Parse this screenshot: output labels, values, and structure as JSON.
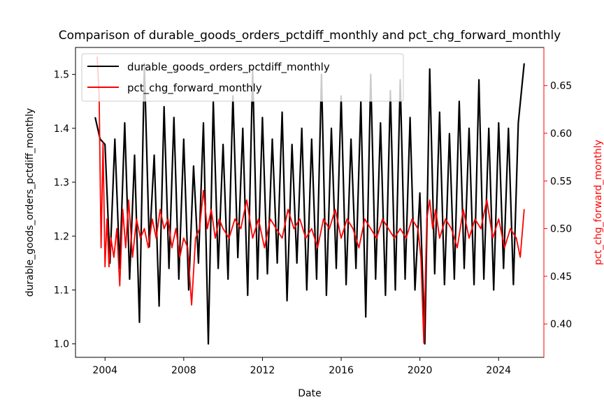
{
  "chart_data": {
    "type": "line",
    "title": "Comparison of durable_goods_orders_pctdiff_monthly and pct_chg_forward_monthly",
    "xlabel": "Date",
    "ylabel_left": "durable_goods_orders_pctdiff_monthly",
    "ylabel_right": "pct_chg_forward_monthly",
    "xlim": [
      2002.5,
      2026.3
    ],
    "ylim_left": [
      0.975,
      1.55
    ],
    "ylim_right": [
      0.365,
      0.69
    ],
    "x_ticks": [
      2004,
      2008,
      2012,
      2016,
      2020,
      2024
    ],
    "x_tick_labels": [
      "2004",
      "2008",
      "2012",
      "2016",
      "2020",
      "2024"
    ],
    "y_left_ticks": [
      1.0,
      1.1,
      1.2,
      1.3,
      1.4,
      1.5
    ],
    "y_left_tick_labels": [
      "1.0",
      "1.1",
      "1.2",
      "1.3",
      "1.4",
      "1.5"
    ],
    "y_right_ticks": [
      0.4,
      0.45,
      0.5,
      0.55,
      0.6,
      0.65
    ],
    "y_right_tick_labels": [
      "0.40",
      "0.45",
      "0.50",
      "0.55",
      "0.60",
      "0.65"
    ],
    "grid": false,
    "legend_position": "top-left",
    "series": [
      {
        "name": "durable_goods_orders_pctdiff_monthly",
        "axis": "left",
        "color": "#000000",
        "x": [
          2003.5,
          2003.75,
          2004.0,
          2004.25,
          2004.5,
          2004.75,
          2005.0,
          2005.25,
          2005.5,
          2005.75,
          2006.0,
          2006.25,
          2006.5,
          2006.75,
          2007.0,
          2007.25,
          2007.5,
          2007.75,
          2008.0,
          2008.25,
          2008.5,
          2008.75,
          2009.0,
          2009.25,
          2009.5,
          2009.75,
          2010.0,
          2010.25,
          2010.5,
          2010.75,
          2011.0,
          2011.25,
          2011.5,
          2011.75,
          2012.0,
          2012.25,
          2012.5,
          2012.75,
          2013.0,
          2013.25,
          2013.5,
          2013.75,
          2014.0,
          2014.25,
          2014.5,
          2014.75,
          2015.0,
          2015.25,
          2015.5,
          2015.75,
          2016.0,
          2016.25,
          2016.5,
          2016.75,
          2017.0,
          2017.25,
          2017.5,
          2017.75,
          2018.0,
          2018.25,
          2018.5,
          2018.75,
          2019.0,
          2019.25,
          2019.5,
          2019.75,
          2020.0,
          2020.25,
          2020.5,
          2020.75,
          2021.0,
          2021.25,
          2021.5,
          2021.75,
          2022.0,
          2022.25,
          2022.5,
          2022.75,
          2023.0,
          2023.25,
          2023.5,
          2023.75,
          2024.0,
          2024.25,
          2024.5,
          2024.75,
          2025.0,
          2025.3
        ],
        "values": [
          1.42,
          1.38,
          1.37,
          1.15,
          1.38,
          1.14,
          1.41,
          1.12,
          1.35,
          1.04,
          1.52,
          1.18,
          1.35,
          1.07,
          1.44,
          1.14,
          1.42,
          1.12,
          1.38,
          1.1,
          1.33,
          1.15,
          1.41,
          1.0,
          1.45,
          1.14,
          1.37,
          1.12,
          1.46,
          1.16,
          1.4,
          1.09,
          1.51,
          1.12,
          1.42,
          1.13,
          1.38,
          1.15,
          1.43,
          1.08,
          1.37,
          1.15,
          1.4,
          1.1,
          1.38,
          1.12,
          1.5,
          1.09,
          1.4,
          1.14,
          1.46,
          1.11,
          1.38,
          1.14,
          1.45,
          1.05,
          1.5,
          1.12,
          1.41,
          1.09,
          1.47,
          1.1,
          1.49,
          1.12,
          1.42,
          1.1,
          1.28,
          1.0,
          1.51,
          1.13,
          1.43,
          1.11,
          1.39,
          1.12,
          1.45,
          1.14,
          1.4,
          1.11,
          1.49,
          1.12,
          1.4,
          1.1,
          1.41,
          1.14,
          1.4,
          1.11,
          1.41,
          1.52
        ]
      },
      {
        "name": "pct_chg_forward_monthly",
        "axis": "right",
        "color": "#ff0000",
        "x": [
          2003.6,
          2003.7,
          2003.8,
          2003.9,
          2004.0,
          2004.1,
          2004.2,
          2004.3,
          2004.45,
          2004.6,
          2004.75,
          2004.9,
          2005.05,
          2005.2,
          2005.4,
          2005.6,
          2005.8,
          2006.0,
          2006.2,
          2006.4,
          2006.6,
          2006.8,
          2007.0,
          2007.2,
          2007.4,
          2007.6,
          2007.8,
          2008.0,
          2008.2,
          2008.4,
          2008.6,
          2008.8,
          2009.0,
          2009.2,
          2009.4,
          2009.6,
          2009.8,
          2010.0,
          2010.3,
          2010.6,
          2010.9,
          2011.2,
          2011.5,
          2011.8,
          2012.1,
          2012.4,
          2012.7,
          2013.0,
          2013.3,
          2013.6,
          2013.9,
          2014.2,
          2014.5,
          2014.8,
          2015.1,
          2015.4,
          2015.7,
          2016.0,
          2016.3,
          2016.6,
          2016.9,
          2017.2,
          2017.5,
          2017.8,
          2018.1,
          2018.4,
          2018.7,
          2019.0,
          2019.3,
          2019.6,
          2019.9,
          2020.05,
          2020.2,
          2020.35,
          2020.5,
          2020.65,
          2020.8,
          2021.0,
          2021.3,
          2021.6,
          2021.9,
          2022.2,
          2022.5,
          2022.8,
          2023.1,
          2023.4,
          2023.7,
          2024.0,
          2024.3,
          2024.6,
          2024.9,
          2025.1,
          2025.3
        ],
        "values": [
          0.68,
          0.64,
          0.48,
          0.59,
          0.46,
          0.51,
          0.46,
          0.49,
          0.47,
          0.5,
          0.44,
          0.52,
          0.48,
          0.53,
          0.47,
          0.51,
          0.49,
          0.5,
          0.48,
          0.51,
          0.49,
          0.52,
          0.5,
          0.51,
          0.48,
          0.5,
          0.47,
          0.49,
          0.48,
          0.42,
          0.49,
          0.5,
          0.54,
          0.5,
          0.52,
          0.49,
          0.51,
          0.5,
          0.49,
          0.51,
          0.5,
          0.53,
          0.49,
          0.51,
          0.48,
          0.51,
          0.5,
          0.49,
          0.52,
          0.5,
          0.51,
          0.49,
          0.5,
          0.48,
          0.51,
          0.5,
          0.52,
          0.49,
          0.51,
          0.5,
          0.48,
          0.51,
          0.5,
          0.49,
          0.51,
          0.5,
          0.49,
          0.5,
          0.49,
          0.51,
          0.5,
          0.47,
          0.38,
          0.51,
          0.53,
          0.5,
          0.52,
          0.49,
          0.51,
          0.5,
          0.48,
          0.52,
          0.49,
          0.51,
          0.5,
          0.53,
          0.49,
          0.51,
          0.48,
          0.5,
          0.49,
          0.47,
          0.52
        ]
      }
    ]
  }
}
